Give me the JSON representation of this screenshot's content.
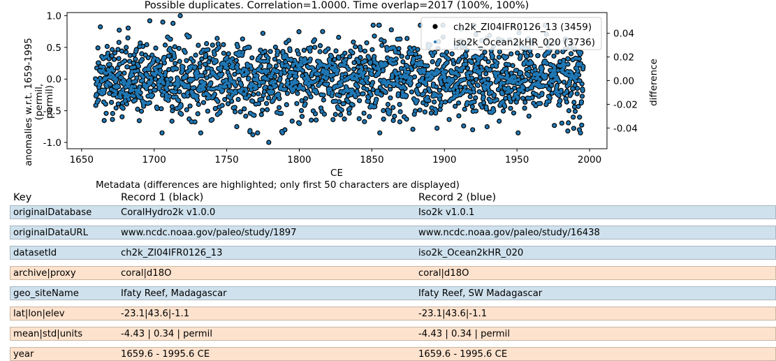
{
  "chart_data": {
    "type": "scatter",
    "title": "Possible duplicates. Correlation=1.0000. Time overlap=2017 (100%, 100%)",
    "xlabel": "CE",
    "ylabel": "anomalies w.r.t. 1659-1995\n(permil,\npermil)",
    "ylabel_right": "difference",
    "xlim": [
      1640,
      2012
    ],
    "ylim": [
      -1.1,
      1.05
    ],
    "ylim_right": [
      -0.0575,
      0.0575
    ],
    "xticks": [
      "1650",
      "1700",
      "1750",
      "1800",
      "1850",
      "1900",
      "1950",
      "2000"
    ],
    "yticks": [
      "-1.0",
      "-0.5",
      "0.0",
      "0.5",
      "1.0"
    ],
    "yticks_right": [
      "-0.04",
      "-0.02",
      "0.00",
      "0.02",
      "0.04"
    ],
    "legend_position": "top-right",
    "grid": false,
    "series": [
      {
        "name": "ch2k_ZI04IFR0126_13 (3459)",
        "color": "#000000",
        "marker": "filled-circle-large",
        "count": 2017,
        "x_range": [
          1659.6,
          1995.6
        ]
      },
      {
        "name": "iso2k_Ocean2kHR_020 (3736)",
        "color": "#1f77b4",
        "marker": "small-point",
        "count": 2017,
        "x_range": [
          1659.6,
          1995.6
        ]
      }
    ],
    "notable_points": {
      "x": [
        1718,
        1779,
        1768,
        1985,
        1993,
        1697,
        1706,
        1713
      ],
      "y": [
        1.0,
        -1.0,
        -0.88,
        -0.82,
        -0.8,
        0.92,
        0.9,
        0.88
      ]
    },
    "stats": {
      "mean": -4.43,
      "std": 0.34,
      "amplitude": 0.3
    }
  },
  "metadata": {
    "caption": "Metadata (differences are highlighted; only first 50 characters are displayed)",
    "headers": {
      "key": "Key",
      "record1": "Record 1 (black)",
      "record2": "Record 2 (blue)"
    },
    "colors": {
      "differs": "#cfe1ed",
      "same": "#fde2cd"
    },
    "rows": [
      {
        "key": "originalDatabase",
        "record1": "CoralHydro2k v1.0.0",
        "record2": "Iso2k v1.0.1",
        "differs": true
      },
      {
        "key": "originalDataURL",
        "record1": "www.ncdc.noaa.gov/paleo/study/1897",
        "record2": "www.ncdc.noaa.gov/paleo/study/16438",
        "differs": true
      },
      {
        "key": "datasetId",
        "record1": "ch2k_ZI04IFR0126_13",
        "record2": "iso2k_Ocean2kHR_020",
        "differs": true
      },
      {
        "key": "archive|proxy",
        "record1": "coral|d18O",
        "record2": "coral|d18O",
        "differs": false
      },
      {
        "key": "geo_siteName",
        "record1": "Ifaty Reef, Madagascar",
        "record2": "Ifaty Reef, SW Madagascar",
        "differs": true
      },
      {
        "key": "lat|lon|elev",
        "record1": "-23.1|43.6|-1.1",
        "record2": "-23.1|43.6|-1.1",
        "differs": false
      },
      {
        "key": "mean|std|units",
        "record1": "-4.43 | 0.34 | permil",
        "record2": "-4.43 | 0.34 | permil",
        "differs": false
      },
      {
        "key": "year",
        "record1": "1659.6 - 1995.6 CE",
        "record2": "1659.6 - 1995.6 CE",
        "differs": false
      }
    ]
  }
}
